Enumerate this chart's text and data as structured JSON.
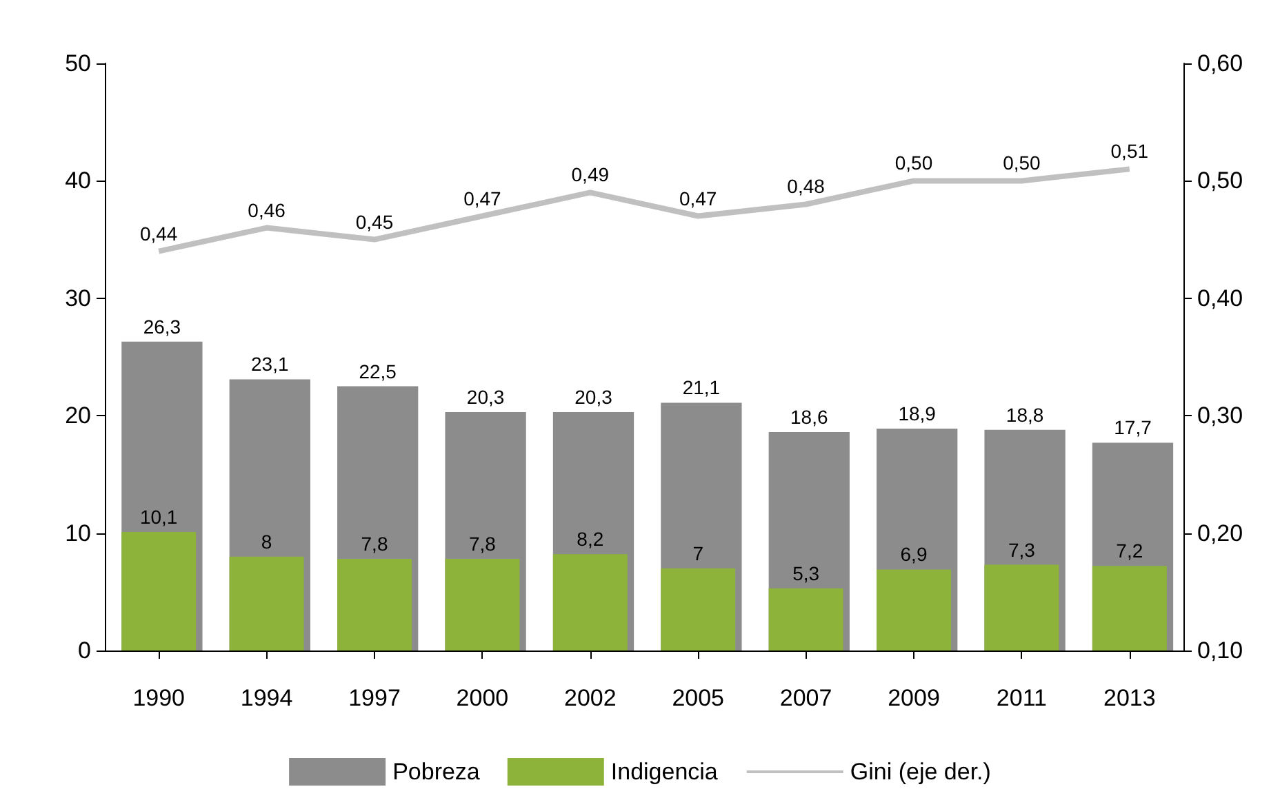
{
  "chart_data": {
    "type": "bar",
    "categories": [
      "1990",
      "1994",
      "1997",
      "2000",
      "2002",
      "2005",
      "2007",
      "2009",
      "2011",
      "2013"
    ],
    "series": [
      {
        "name": "Pobreza",
        "color": "#8c8c8c",
        "values": [
          26.3,
          23.1,
          22.5,
          20.3,
          20.3,
          21.1,
          18.6,
          18.9,
          18.8,
          17.7
        ],
        "value_labels": [
          "26,3",
          "23,1",
          "22,5",
          "20,3",
          "20,3",
          "21,1",
          "18,6",
          "18,9",
          "18,8",
          "17,7"
        ]
      },
      {
        "name": "Indigencia",
        "color": "#8db33a",
        "values": [
          10.1,
          8,
          7.8,
          7.8,
          8.2,
          7,
          5.3,
          6.9,
          7.3,
          7.2
        ],
        "value_labels": [
          "10,1",
          "8",
          "7,8",
          "7,8",
          "8,2",
          "7",
          "5,3",
          "6,9",
          "7,3",
          "7,2"
        ]
      },
      {
        "name": "Gini (eje der.)",
        "type": "line",
        "axis": "y2",
        "color": "#c0c0c0",
        "values": [
          0.44,
          0.46,
          0.45,
          0.47,
          0.49,
          0.47,
          0.48,
          0.5,
          0.5,
          0.51
        ],
        "value_labels": [
          "0,44",
          "0,46",
          "0,45",
          "0,47",
          "0,49",
          "0,47",
          "0,48",
          "0,50",
          "0,50",
          "0,51"
        ]
      }
    ],
    "ylim": [
      0,
      50
    ],
    "yticks": [
      0,
      10,
      20,
      30,
      40,
      50
    ],
    "y2lim": [
      0.1,
      0.6
    ],
    "y2ticks": [
      {
        "value": 0.1,
        "label": "0,10"
      },
      {
        "value": 0.2,
        "label": "0,20"
      },
      {
        "value": 0.3,
        "label": "0,30"
      },
      {
        "value": 0.4,
        "label": "0,40"
      },
      {
        "value": 0.5,
        "label": "0,50"
      },
      {
        "value": 0.6,
        "label": "0,60"
      }
    ],
    "grid": false,
    "legend": "bottom",
    "marker": "none",
    "line_style": "solid"
  }
}
